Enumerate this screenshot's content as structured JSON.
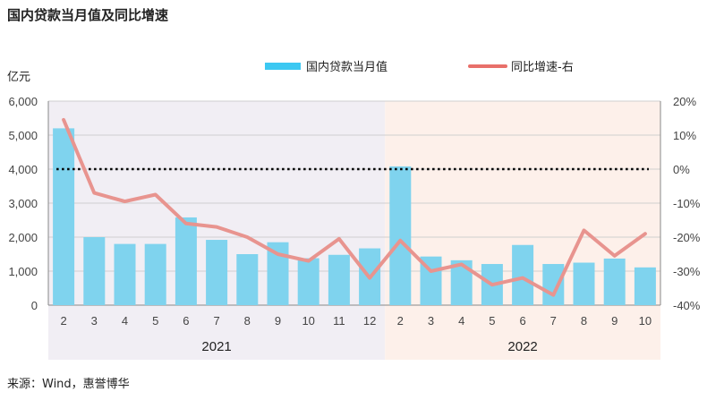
{
  "title": "国内贷款当月值及同比增速",
  "source": "来源：Wind，惠誉博华",
  "chart_data": {
    "type": "bar",
    "title": "国内贷款当月值及同比增速",
    "ylabel": "亿元",
    "ylim": [
      0,
      6000
    ],
    "y_ticks": [
      "0",
      "1,000",
      "2,000",
      "3,000",
      "4,000",
      "5,000",
      "6,000"
    ],
    "y2lim": [
      -40,
      20
    ],
    "y2_ticks": [
      "-40%",
      "-30%",
      "-20%",
      "-10%",
      "0%",
      "10%",
      "20%"
    ],
    "categories": [
      "2",
      "3",
      "4",
      "5",
      "6",
      "7",
      "8",
      "9",
      "10",
      "11",
      "12",
      "2",
      "3",
      "4",
      "5",
      "6",
      "7",
      "8",
      "9",
      "10"
    ],
    "groups": [
      {
        "label": "2021",
        "start": 0,
        "end": 10,
        "color": "#f1eef4"
      },
      {
        "label": "2022",
        "start": 11,
        "end": 19,
        "color": "#fdf0ea"
      }
    ],
    "series": [
      {
        "name": "国内贷款当月值",
        "type": "bar",
        "axis": "left",
        "color": "#7fd3ee",
        "values": [
          5200,
          2000,
          1800,
          1800,
          2580,
          1920,
          1500,
          1850,
          1380,
          1480,
          1670,
          4080,
          1430,
          1320,
          1210,
          1770,
          1210,
          1250,
          1370,
          1110
        ]
      },
      {
        "name": "同比增速-右",
        "type": "line",
        "axis": "right",
        "color": "#e8948f",
        "values": [
          14.5,
          -7,
          -9.5,
          -7.5,
          -16,
          -17,
          -20,
          -25,
          -27,
          -20.5,
          -32,
          -21,
          -30,
          -28,
          -34,
          -32,
          -37,
          -18,
          -25.5,
          -19
        ]
      }
    ],
    "reference_line": {
      "value": 0,
      "axis": "right",
      "style": "dotted",
      "color": "#000000"
    },
    "legend": "top-center",
    "legend_colors": [
      "#3cc8f2",
      "#e8706a"
    ],
    "grid": true
  }
}
